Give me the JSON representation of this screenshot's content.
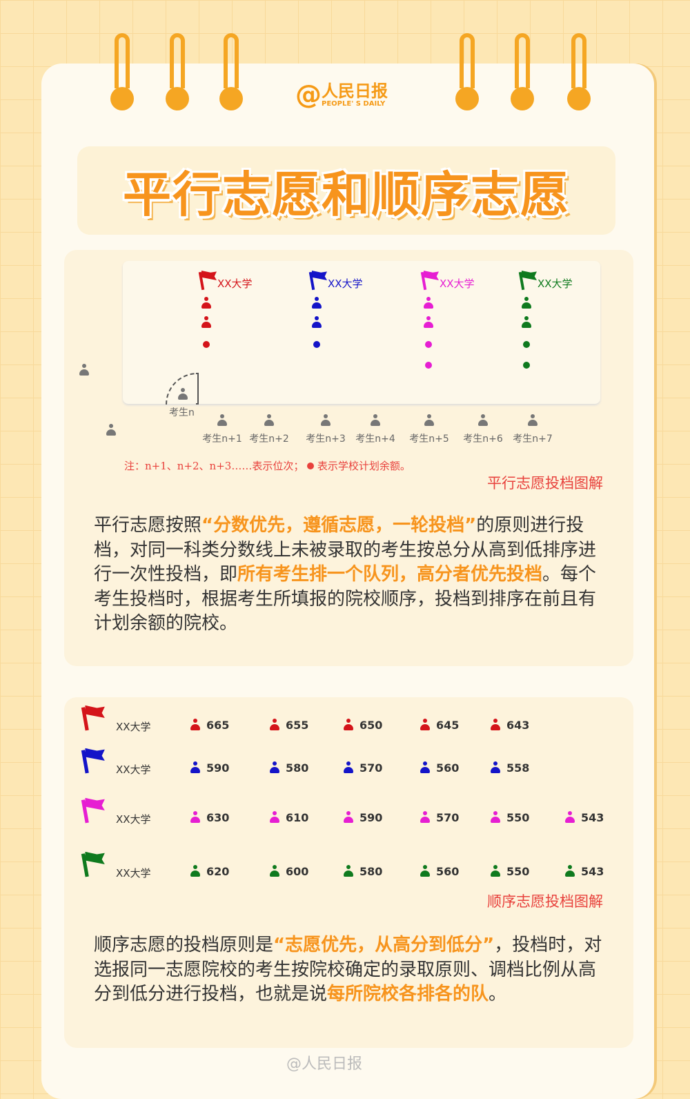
{
  "logo": {
    "cn": "人民日报",
    "en": "PEOPLE' S DAILY"
  },
  "title": "平行志愿和顺序志愿",
  "parallel": {
    "schools": [
      {
        "label": "XX大学",
        "color": "#d4141a",
        "quota": 3
      },
      {
        "label": "XX大学",
        "color": "#1414c8",
        "quota": 3
      },
      {
        "label": "XX大学",
        "color": "#e61ed2",
        "quota": 4
      },
      {
        "label": "XX大学",
        "color": "#0f7a1e",
        "quota": 4
      }
    ],
    "current_student": "考生n",
    "students": [
      "考生n+1",
      "考生n+2",
      "考生n+3",
      "考生n+4",
      "考生n+5",
      "考生n+6",
      "考生n+7"
    ],
    "note": "注：n+1、n+2、n+3……表示位次；",
    "note2": "表示学校计划余额。",
    "caption": "平行志愿投档图解",
    "text": [
      {
        "t": "平行志愿按照"
      },
      {
        "t": "“分数优先，遵循志愿，一轮投档”",
        "b": true
      },
      {
        "t": "的原则进行投档，对同一科类分数线上未被录取的考生按总分从高到低排序进行一次性投档，即"
      },
      {
        "t": "所有考生排一个队列，高分者优先投档",
        "b": true
      },
      {
        "t": "。每个考生投档时，根据考生所填报的院校顺序，投档到排序在前且有计划余额的院校。"
      }
    ]
  },
  "sequential": {
    "rows": [
      {
        "label": "XX大学",
        "color": "#d4141a",
        "scores": [
          "665",
          "655",
          "650",
          "645",
          "643"
        ]
      },
      {
        "label": "XX大学",
        "color": "#1414c8",
        "scores": [
          "590",
          "580",
          "570",
          "560",
          "558"
        ]
      },
      {
        "label": "XX大学",
        "color": "#e61ed2",
        "scores": [
          "630",
          "610",
          "590",
          "570",
          "550",
          "543"
        ]
      },
      {
        "label": "XX大学",
        "color": "#0f7a1e",
        "scores": [
          "620",
          "600",
          "580",
          "560",
          "550",
          "543"
        ]
      }
    ],
    "caption": "顺序志愿投档图解",
    "text": [
      {
        "t": "顺序志愿的投档原则是"
      },
      {
        "t": "“志愿优先，从高分到低分”",
        "b": true
      },
      {
        "t": "，投档时，对选报同一志愿院校的考生按院校确定的录取原则、调档比例从高分到低分进行投档，也就是说"
      },
      {
        "t": "每所院校各排各的队",
        "b": true
      },
      {
        "t": "。"
      }
    ]
  },
  "watermark": "@人民日报",
  "colors": {
    "accent": "#f7941d",
    "note": "#e8413c"
  }
}
